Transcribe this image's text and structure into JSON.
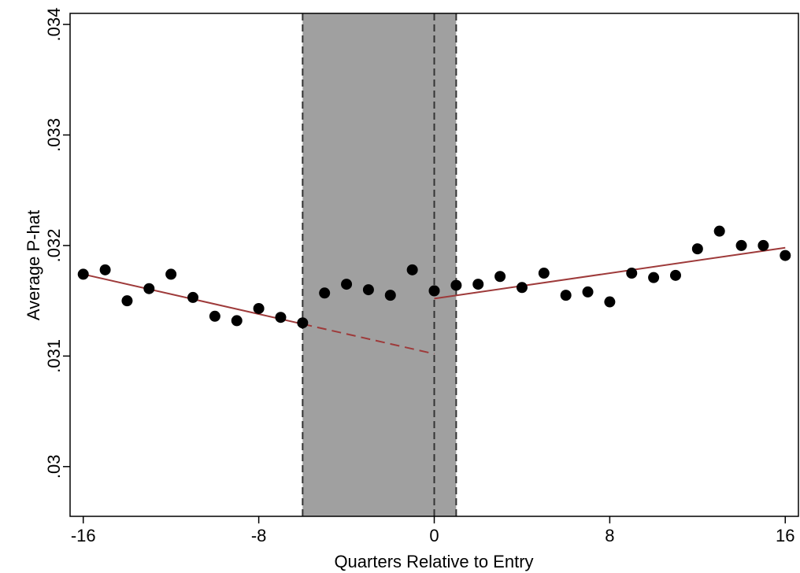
{
  "chart_data": {
    "type": "scatter",
    "title": "",
    "xlabel": "Quarters Relative to Entry",
    "ylabel": "Average P-hat",
    "xlim": [
      -16.6,
      16.6
    ],
    "ylim": [
      0.02955,
      0.0341
    ],
    "xticks": [
      {
        "value": -16,
        "label": "-16"
      },
      {
        "value": -8,
        "label": "-8"
      },
      {
        "value": 0,
        "label": "0"
      },
      {
        "value": 8,
        "label": "8"
      },
      {
        "value": 16,
        "label": "16"
      }
    ],
    "yticks": [
      {
        "value": 0.03,
        "label": ".03"
      },
      {
        "value": 0.031,
        "label": ".031"
      },
      {
        "value": 0.032,
        "label": ".032"
      },
      {
        "value": 0.033,
        "label": ".033"
      },
      {
        "value": 0.034,
        "label": ".034"
      }
    ],
    "grid": false,
    "legend": "none",
    "shaded_region": {
      "x": [
        -6,
        1
      ],
      "color": "#a0a0a0"
    },
    "vertical_lines": [
      -6,
      0,
      1
    ],
    "points": {
      "color": "#000000",
      "x": [
        -16,
        -15,
        -14,
        -13,
        -12,
        -11,
        -10,
        -9,
        -8,
        -7,
        -6,
        -5,
        -4,
        -3,
        -2,
        -1,
        0,
        1,
        2,
        3,
        4,
        5,
        6,
        7,
        8,
        9,
        10,
        11,
        12,
        13,
        14,
        15,
        16
      ],
      "y": [
        0.03174,
        0.03178,
        0.0315,
        0.03161,
        0.03174,
        0.03153,
        0.03136,
        0.03132,
        0.03143,
        0.03135,
        0.0313,
        0.03157,
        0.03165,
        0.0316,
        0.03155,
        0.03178,
        0.03159,
        0.03164,
        0.03165,
        0.03172,
        0.03162,
        0.03175,
        0.03155,
        0.03158,
        0.03149,
        0.03175,
        0.03171,
        0.03173,
        0.03197,
        0.03213,
        0.032,
        0.032,
        0.03191
      ]
    },
    "fit_lines": [
      {
        "x": [
          -16,
          -6
        ],
        "y": [
          0.03174,
          0.03129
        ],
        "style": "solid",
        "color": "#9e3a3a"
      },
      {
        "x": [
          -6,
          0
        ],
        "y": [
          0.03129,
          0.03102
        ],
        "style": "dashed",
        "color": "#9e3a3a"
      },
      {
        "x": [
          0,
          16
        ],
        "y": [
          0.03152,
          0.03198
        ],
        "style": "solid",
        "color": "#9e3a3a"
      }
    ]
  }
}
